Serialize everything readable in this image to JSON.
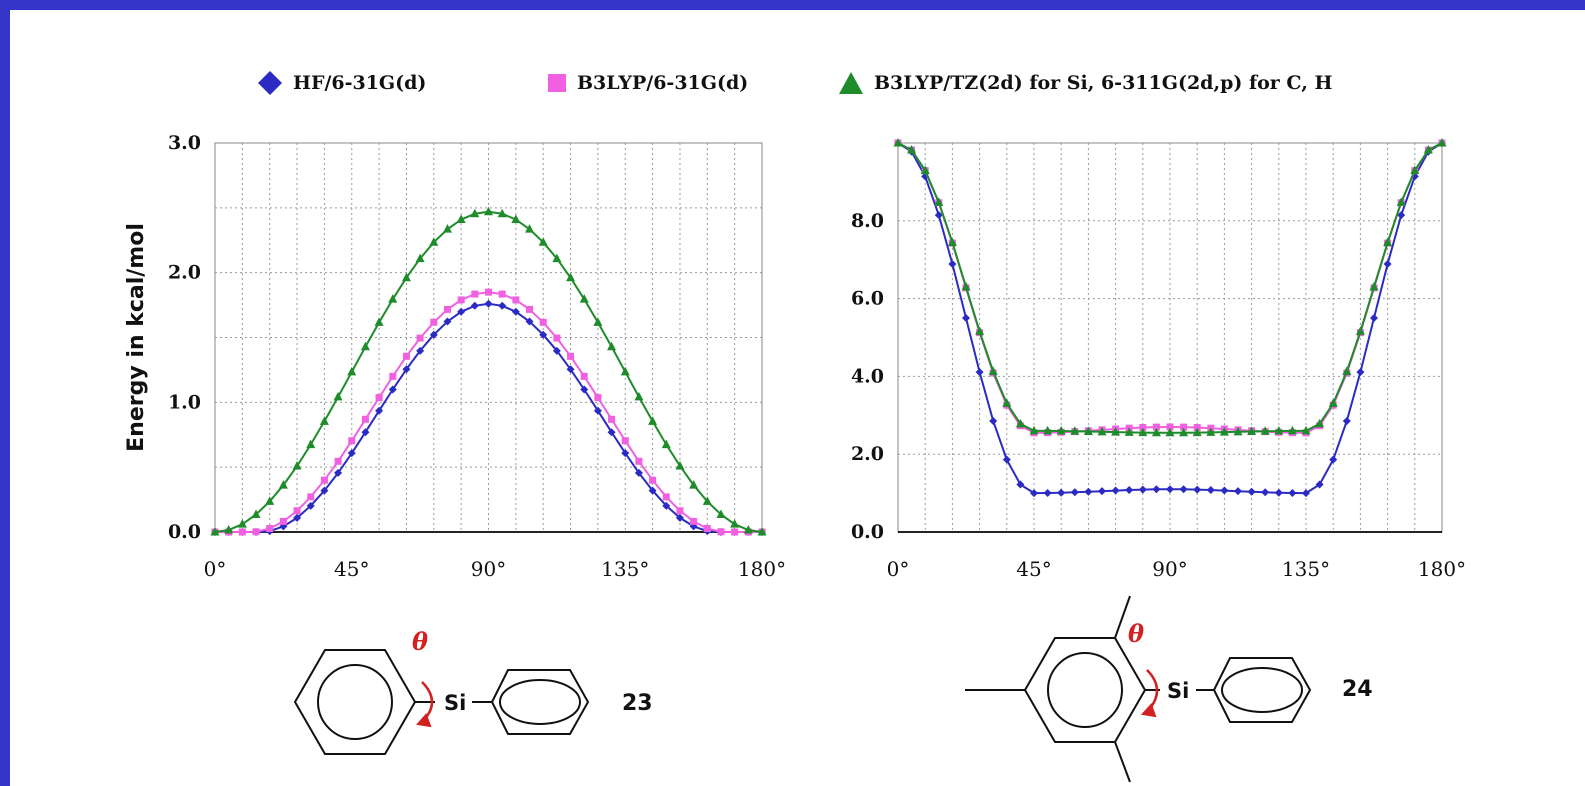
{
  "legend": [
    {
      "label": "HF/6-31G(d)",
      "color": "#2b2bc4",
      "marker": "diamond"
    },
    {
      "label": "B3LYP/6-31G(d)",
      "color": "#f060e0",
      "marker": "square"
    },
    {
      "label": "B3LYP/TZ(2d) for Si, 6-311G(2d,p) for C, H",
      "color": "#1e8c2a",
      "marker": "triangle"
    }
  ],
  "chart_data": [
    {
      "type": "line",
      "ylabel": "Energy in kcal/mol",
      "xlabel": "",
      "x_tick_labels": [
        "0°",
        "45°",
        "90°",
        "135°",
        "180°"
      ],
      "y_tick_labels": [
        "0.0",
        "1.0",
        "2.0",
        "3.0"
      ],
      "xlim": [
        0,
        180
      ],
      "ylim": [
        0,
        3.0
      ],
      "grid": true,
      "series": [
        {
          "name": "HF/6-31G(d)",
          "color": "#2b2bc4",
          "marker": "diamond",
          "peak_x": 90,
          "peak_y": 1.76,
          "zero_until": 15
        },
        {
          "name": "B3LYP/6-31G(d)",
          "color": "#f060e0",
          "marker": "square",
          "peak_x": 90,
          "peak_y": 1.85,
          "zero_until": 12
        },
        {
          "name": "B3LYP/TZ(2d) for Si, 6-311G(2d,p) for C, H",
          "color": "#1e8c2a",
          "marker": "triangle",
          "peak_x": 90,
          "peak_y": 2.47,
          "zero_until": 0
        }
      ],
      "structure": {
        "label": "23",
        "theta": "θ",
        "atom": "Si"
      }
    },
    {
      "type": "line",
      "ylabel": "",
      "xlabel": "",
      "x_tick_labels": [
        "0°",
        "45°",
        "90°",
        "135°",
        "180°"
      ],
      "y_tick_labels": [
        "0.0",
        "2.0",
        "4.0",
        "6.0",
        "8.0"
      ],
      "xlim": [
        0,
        180
      ],
      "ylim": [
        0,
        10.0
      ],
      "grid": true,
      "series": [
        {
          "name": "HF/6-31G(d)",
          "color": "#2b2bc4",
          "marker": "diamond",
          "max_y": 10.0,
          "plateau_y": 1.0,
          "mid_y": 1.1
        },
        {
          "name": "B3LYP/6-31G(d)",
          "color": "#f060e0",
          "marker": "square",
          "max_y": 10.0,
          "plateau_y": 2.55,
          "mid_y": 2.7
        },
        {
          "name": "B3LYP/TZ(2d) for Si, 6-311G(2d,p) for C, H",
          "color": "#1e8c2a",
          "marker": "triangle",
          "max_y": 10.0,
          "plateau_y": 2.6,
          "mid_y": 2.55
        }
      ],
      "structure": {
        "label": "24",
        "theta": "θ",
        "atom": "Si"
      }
    }
  ]
}
